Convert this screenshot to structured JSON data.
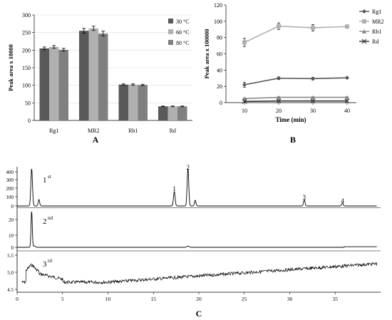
{
  "chart_data": [
    {
      "type": "bar",
      "panel_label": "A",
      "ylabel": "Peak area x 10000",
      "ylim": [
        0,
        300
      ],
      "yticks": [
        0,
        50,
        100,
        150,
        200,
        250,
        300
      ],
      "categories": [
        "Rg1",
        "MR2",
        "Rb1",
        "Rd"
      ],
      "series": [
        {
          "name": "30 °C",
          "color": "#595959",
          "values": [
            205,
            255,
            102,
            40
          ],
          "errors": [
            4,
            7,
            2,
            1
          ]
        },
        {
          "name": "60 °C",
          "color": "#b0b0b0",
          "values": [
            209,
            262,
            102,
            40
          ],
          "errors": [
            4,
            6,
            2,
            1
          ]
        },
        {
          "name": "80 °C",
          "color": "#808080",
          "values": [
            201,
            247,
            101,
            40
          ],
          "errors": [
            4,
            7,
            2,
            1
          ]
        }
      ],
      "legend": "right"
    },
    {
      "type": "line",
      "panel_label": "B",
      "xlabel": "Time (min)",
      "ylabel": "Peak area x 100000",
      "x": [
        10,
        20,
        30,
        40
      ],
      "ylim": [
        0,
        120
      ],
      "yticks": [
        0,
        20,
        40,
        60,
        80,
        100,
        120
      ],
      "series": [
        {
          "name": "Rg1",
          "color": "#555555",
          "marker": "diamond",
          "values": [
            22,
            30,
            29.5,
            30.5
          ],
          "errors": [
            3,
            1.5,
            1.5,
            0.5
          ]
        },
        {
          "name": "MR2",
          "color": "#b0b0b0",
          "marker": "square",
          "values": [
            74,
            94,
            92,
            93.5
          ],
          "errors": [
            5,
            4,
            4,
            1
          ]
        },
        {
          "name": "Rb1",
          "color": "#8c8c8c",
          "marker": "triangle",
          "values": [
            5,
            6.5,
            6.5,
            6.5
          ],
          "errors": [
            0.5,
            0.5,
            0.5,
            0.5
          ]
        },
        {
          "name": "Rd",
          "color": "#333333",
          "marker": "x",
          "values": [
            1.5,
            2,
            2,
            2
          ],
          "errors": [
            0,
            0,
            0,
            0
          ]
        }
      ],
      "legend": "right"
    },
    {
      "type": "line",
      "panel_label": "C",
      "xlim": [
        0,
        40
      ],
      "xticks": [
        0,
        5,
        10,
        15,
        20,
        25,
        30,
        35
      ],
      "panels": [
        {
          "label": "1",
          "label_sup": "st",
          "yticks": [
            0,
            100,
            200,
            300,
            400
          ],
          "peaks": [
            {
              "label": "1",
              "x": 17.3
            },
            {
              "label": "2",
              "x": 18.8
            },
            {
              "label": "3",
              "x": 31.6
            },
            {
              "label": "4",
              "x": 35.8
            }
          ]
        },
        {
          "label": "2",
          "label_sup": "nd",
          "yticks": [
            0,
            10,
            20
          ]
        },
        {
          "label": "3",
          "label_sup": "rd",
          "yticks": [
            "4.5",
            "5.0",
            "5.5"
          ]
        }
      ]
    }
  ]
}
